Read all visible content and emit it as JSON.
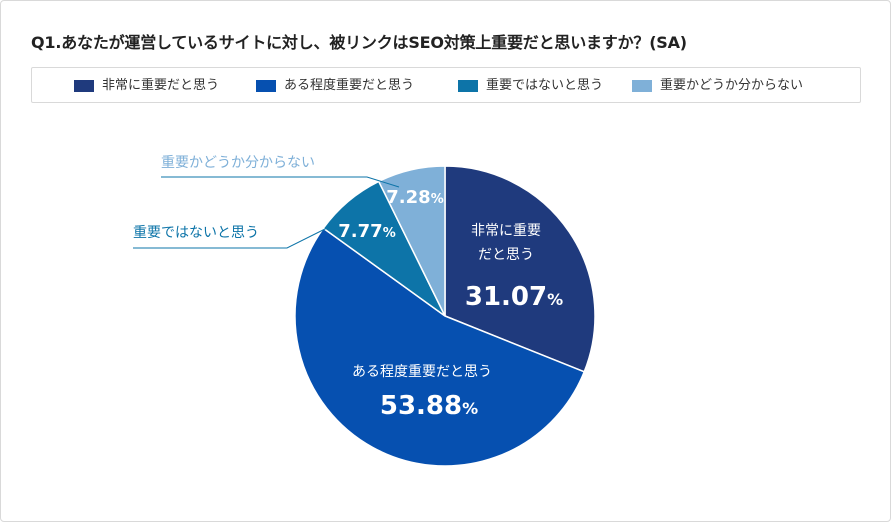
{
  "chart_data": {
    "type": "pie",
    "title": "Q1.あなたが運営しているサイトに対し、被リンクはSEO対策上重要だと思いますか？(SA)",
    "slices": [
      {
        "label": "非常に重要だと思う",
        "label_lines": [
          "非常に重要",
          "だと思う"
        ],
        "value": 31.07,
        "display": "31.07",
        "color": "#1f3a7d"
      },
      {
        "label": "ある程度重要だと思う",
        "label_lines": [
          "ある程度重要だと思う"
        ],
        "value": 53.88,
        "display": "53.88",
        "color": "#0650b0"
      },
      {
        "label": "重要ではないと思う",
        "label_lines": [
          "重要ではないと思う"
        ],
        "value": 7.77,
        "display": "7.77",
        "color": "#0d74a8"
      },
      {
        "label": "重要かどうか分からない",
        "label_lines": [
          "重要かどうか分からない"
        ],
        "value": 7.28,
        "display": "7.28",
        "color": "#7fb0d8"
      }
    ],
    "unit": "%",
    "legend_position": "top"
  }
}
